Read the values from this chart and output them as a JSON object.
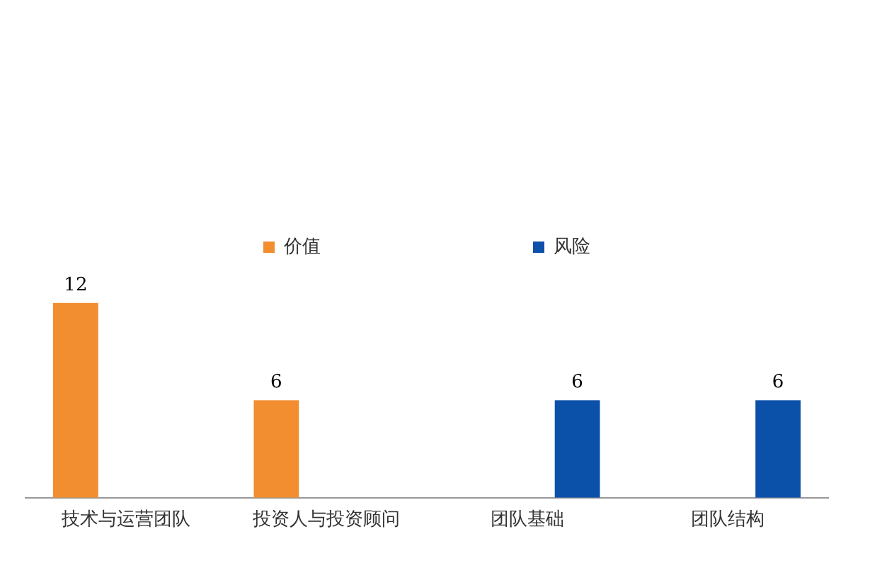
{
  "chart_data": {
    "type": "bar",
    "categories": [
      "技术与运营团队",
      "投资人与投资顾问",
      "团队基础",
      "团队结构"
    ],
    "series": [
      {
        "name": "价值",
        "color": "#f28e30",
        "values": [
          12,
          6,
          null,
          null
        ]
      },
      {
        "name": "风险",
        "color": "#0b50a9",
        "values": [
          null,
          null,
          6,
          6
        ]
      }
    ],
    "data_labels": true,
    "legend": "top",
    "grid": false
  }
}
